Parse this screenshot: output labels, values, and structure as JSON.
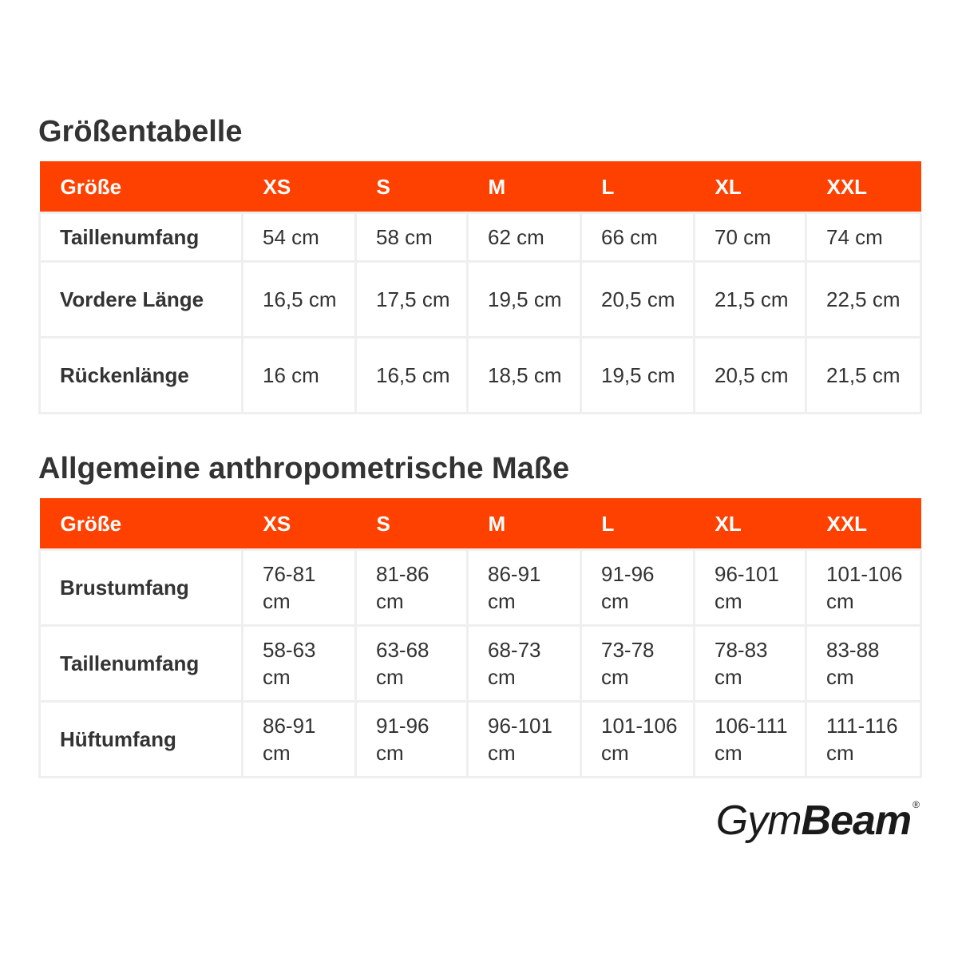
{
  "size_chart": {
    "title": "Größentabelle",
    "headers": [
      "Größe",
      "XS",
      "S",
      "M",
      "L",
      "XL",
      "XXL"
    ],
    "rows": [
      {
        "label": "Taillenumfang",
        "values": [
          "54 cm",
          "58 cm",
          "62 cm",
          "66 cm",
          "70 cm",
          "74 cm"
        ]
      },
      {
        "label": "Vordere Länge",
        "values": [
          "16,5 cm",
          "17,5 cm",
          "19,5 cm",
          "20,5 cm",
          "21,5 cm",
          "22,5 cm"
        ]
      },
      {
        "label": "Rückenlänge",
        "values": [
          "16 cm",
          "16,5 cm",
          "18,5 cm",
          "19,5 cm",
          "20,5 cm",
          "21,5 cm"
        ]
      }
    ]
  },
  "body_measurements": {
    "title": "Allgemeine anthropometrische Maße",
    "headers": [
      "Größe",
      "XS",
      "S",
      "M",
      "L",
      "XL",
      "XXL"
    ],
    "rows": [
      {
        "label": "Brustumfang",
        "values": [
          "76-81 cm",
          "81-86 cm",
          "86-91 cm",
          "91-96 cm",
          "96-101 cm",
          "101-106 cm"
        ]
      },
      {
        "label": "Taillenumfang",
        "values": [
          "58-63 cm",
          "63-68 cm",
          "68-73 cm",
          "73-78 cm",
          "78-83 cm",
          "83-88 cm"
        ]
      },
      {
        "label": "Hüftumfang",
        "values": [
          "86-91 cm",
          "91-96 cm",
          "96-101 cm",
          "101-106 cm",
          "106-111 cm",
          "111-116 cm"
        ]
      }
    ]
  },
  "brand": {
    "name_light": "Gym",
    "name_bold": "Beam",
    "registered_mark": "®"
  },
  "colors": {
    "header_background": "#ff4100",
    "header_text": "#ffffff",
    "body_text": "#333333",
    "cell_border": "#efefef"
  }
}
